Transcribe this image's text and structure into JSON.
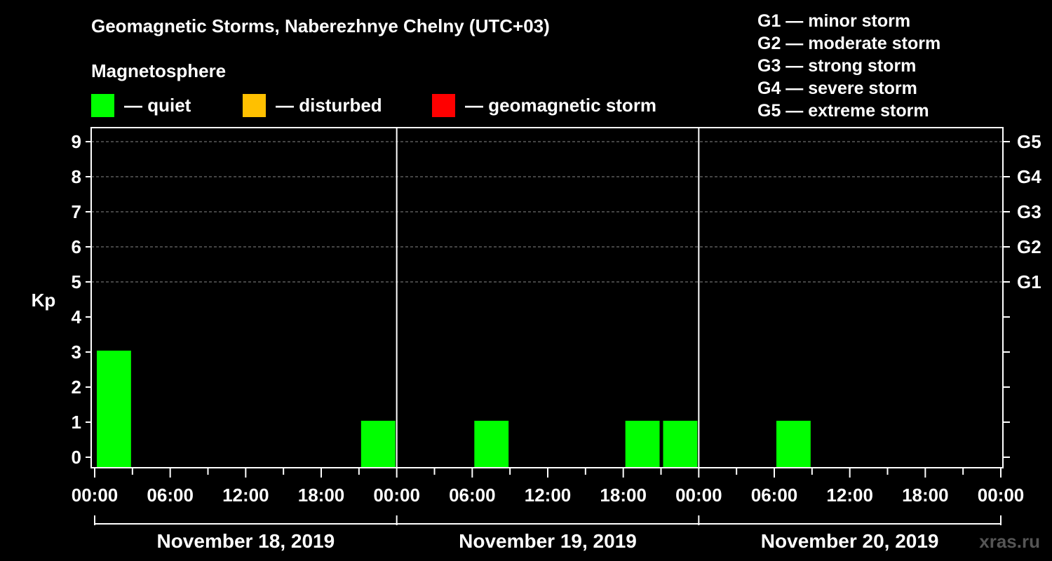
{
  "title": "Geomagnetic Storms, Naberezhnye Chelny (UTC+03)",
  "magnetosphere": {
    "title": "Magnetosphere",
    "items": [
      {
        "label": "— quiet",
        "color": "#00ff00"
      },
      {
        "label": "— disturbed",
        "color": "#ffc000"
      },
      {
        "label": "— geomagnetic storm",
        "color": "#ff0000"
      }
    ]
  },
  "storm_scale": [
    "G1 — minor storm",
    "G2 — moderate storm",
    "G3 — strong storm",
    "G4 — severe storm",
    "G5 — extreme storm"
  ],
  "watermark": "xras.ru",
  "chart_data": {
    "type": "bar",
    "ylabel": "Kp",
    "ylim": [
      0,
      9
    ],
    "yticks": [
      "0",
      "1",
      "2",
      "3",
      "4",
      "5",
      "6",
      "7",
      "8",
      "9"
    ],
    "right_ticks": [
      {
        "kp": 5,
        "label": "G1"
      },
      {
        "kp": 6,
        "label": "G2"
      },
      {
        "kp": 7,
        "label": "G3"
      },
      {
        "kp": 8,
        "label": "G4"
      },
      {
        "kp": 9,
        "label": "G5"
      }
    ],
    "grid": true,
    "xticks": [
      "00:00",
      "06:00",
      "12:00",
      "18:00",
      "00:00",
      "06:00",
      "12:00",
      "18:00",
      "00:00",
      "06:00",
      "12:00",
      "18:00",
      "00:00"
    ],
    "days": [
      "November 18, 2019",
      "November 19, 2019",
      "November 20, 2019"
    ],
    "bar_hours": 3,
    "bars": [
      {
        "start_hour": 0,
        "kp": 3,
        "color": "#00ff00"
      },
      {
        "start_hour": 21,
        "kp": 1,
        "color": "#00ff00"
      },
      {
        "start_hour": 30,
        "kp": 1,
        "color": "#00ff00"
      },
      {
        "start_hour": 42,
        "kp": 1,
        "color": "#00ff00"
      },
      {
        "start_hour": 45,
        "kp": 1,
        "color": "#00ff00"
      },
      {
        "start_hour": 54,
        "kp": 1,
        "color": "#00ff00"
      }
    ]
  }
}
